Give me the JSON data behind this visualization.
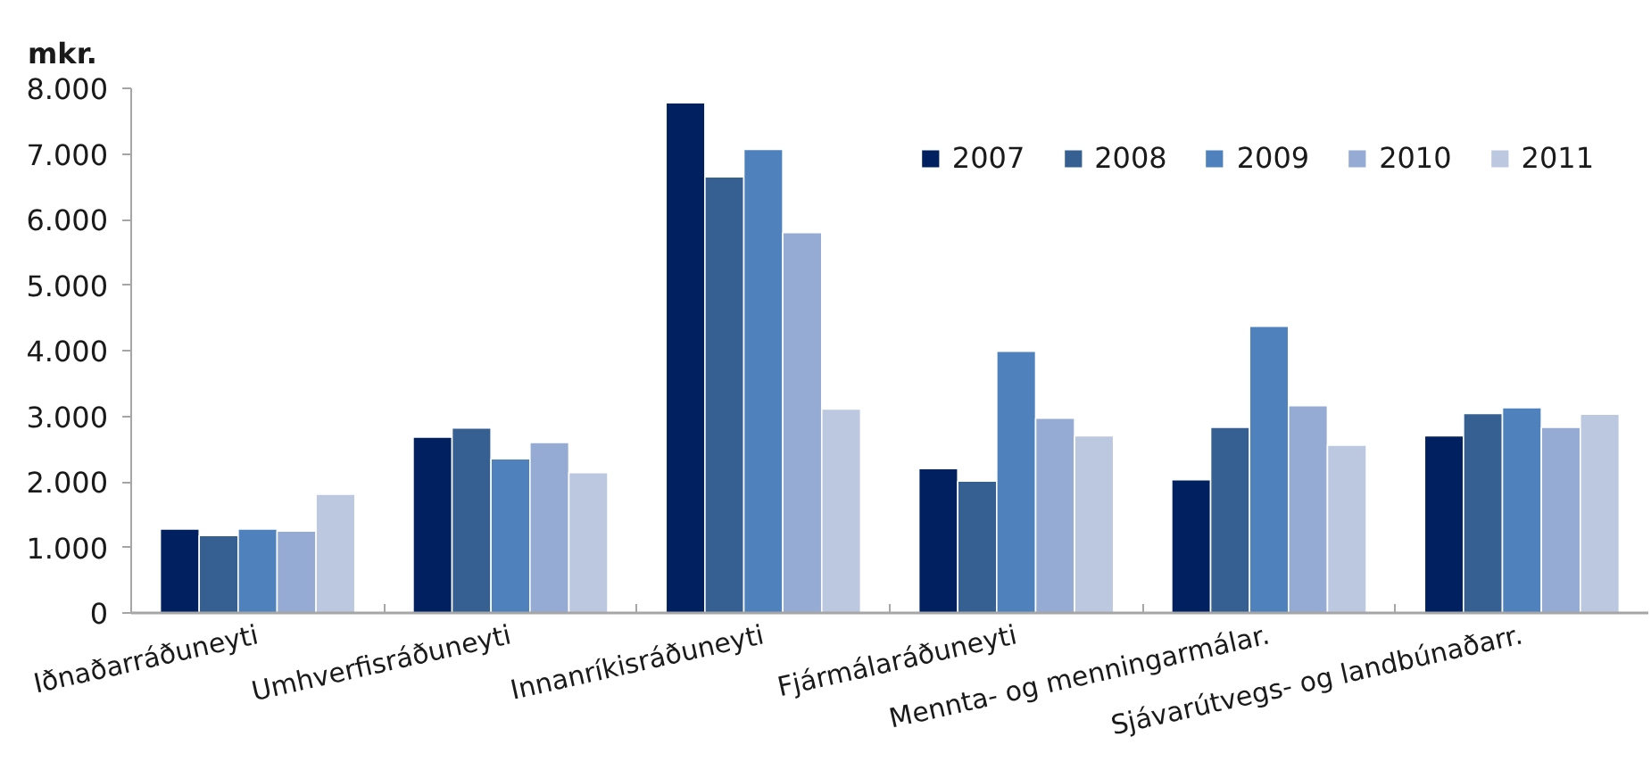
{
  "chart_data": {
    "type": "bar",
    "ylabel": "mkr.",
    "categories": [
      "Iðnaðarráðuneyti",
      "Umhverfisráðuneyti",
      "Innanríkisráðuneyti",
      "Fjármálaráðuneyti",
      "Mennta- og menningarmálar.",
      "Sjávarútvegs- og landbúnaðarr."
    ],
    "series": [
      {
        "name": "2007",
        "color": "#002060",
        "values": [
          1280,
          2680,
          7780,
          2200,
          2030,
          2700
        ]
      },
      {
        "name": "2008",
        "color": "#366092",
        "values": [
          1180,
          2820,
          6650,
          2010,
          2830,
          3040
        ]
      },
      {
        "name": "2009",
        "color": "#4f81bd",
        "values": [
          1280,
          2350,
          7070,
          3990,
          4370,
          3130
        ]
      },
      {
        "name": "2010",
        "color": "#95abd3",
        "values": [
          1250,
          2600,
          5800,
          2970,
          3160,
          2830
        ]
      },
      {
        "name": "2011",
        "color": "#bcc8e0",
        "values": [
          1810,
          2140,
          3110,
          2700,
          2560,
          3030
        ]
      }
    ],
    "ylim": [
      0,
      8000
    ],
    "yticks": [
      0,
      {
        "value": 1000,
        "label": "1.000"
      },
      {
        "value": 2000,
        "label": "2.000"
      },
      {
        "value": 3000,
        "label": "3.000"
      },
      {
        "value": 4000,
        "label": "4.000"
      },
      {
        "value": 5000,
        "label": "5.000"
      },
      {
        "value": 6000,
        "label": "6.000"
      },
      {
        "value": 7000,
        "label": "7.000"
      },
      {
        "value": 8000,
        "label": "8.000"
      }
    ],
    "legend": "top right"
  }
}
